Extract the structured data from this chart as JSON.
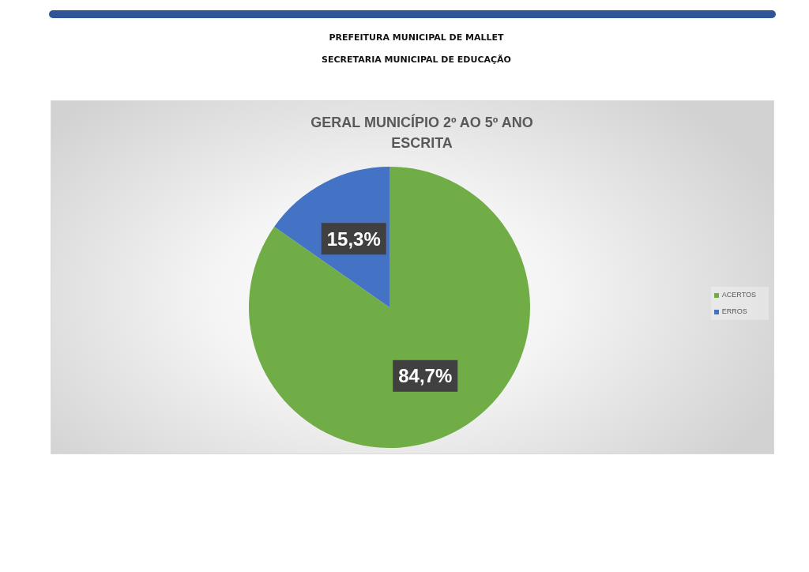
{
  "chart_data": {
    "type": "pie",
    "title": "GERAL MUNICÍPIO 2º AO 5º ANO",
    "subtitle": "ESCRITA",
    "annotations": [
      "PREFEITURA MUNICIPAL DE MALLET",
      "SECRETARIA MUNICIPAL DE EDUCAÇÃO"
    ],
    "categories": [
      "ACERTOS",
      "ERROS"
    ],
    "values": [
      84.7,
      15.3
    ],
    "colors": [
      "#70ad47",
      "#4472c4"
    ],
    "value_labels": [
      "84,7%",
      "15,3%"
    ],
    "legend": "right"
  }
}
